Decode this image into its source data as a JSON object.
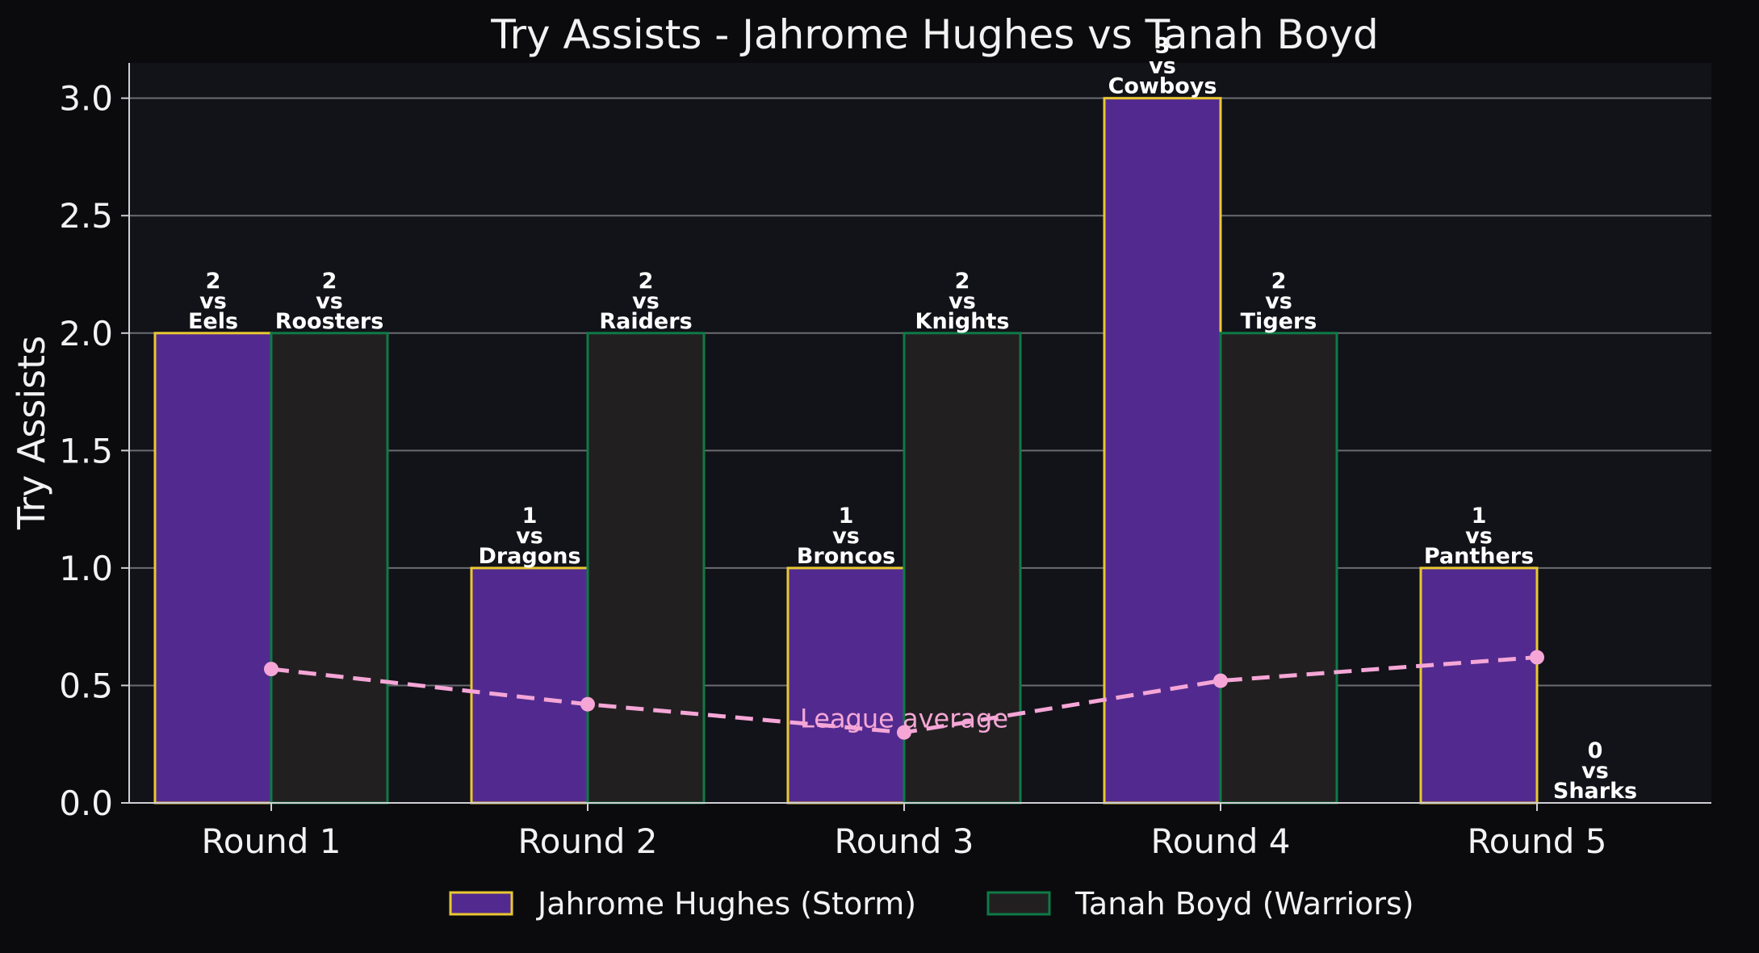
{
  "chart_data": {
    "type": "bar",
    "title": "Try Assists - Jahrome Hughes vs Tanah Boyd",
    "xlabel": "",
    "ylabel": "Try Assists",
    "ylim": [
      0,
      3.15
    ],
    "yticks": [
      "0.0",
      "0.5",
      "1.0",
      "1.5",
      "2.0",
      "2.5",
      "3.0"
    ],
    "grid": "horizontal",
    "legend_position": "bottom-center",
    "categories": [
      "Round 1",
      "Round 2",
      "Round 3",
      "Round 4",
      "Round 5"
    ],
    "series": [
      {
        "name": "Jahrome Hughes (Storm)",
        "values": [
          2,
          1,
          1,
          3,
          1
        ],
        "opponents": [
          "Eels",
          "Dragons",
          "Broncos",
          "Cowboys",
          "Panthers"
        ],
        "color": "#522a8f",
        "edge_color": "#e8c832"
      },
      {
        "name": "Tanah Boyd (Warriors)",
        "values": [
          2,
          2,
          2,
          2,
          0
        ],
        "opponents": [
          "Roosters",
          "Raiders",
          "Knights",
          "Tigers",
          "Sharks"
        ],
        "color": "#221f21",
        "edge_color": "#0e7a45"
      }
    ],
    "vs_word": "vs",
    "league_average": {
      "label": "League average",
      "values": [
        0.57,
        0.42,
        0.3,
        0.52,
        0.62
      ],
      "color": "#f5a6d6"
    },
    "colors": {
      "background": "#0b0b0e",
      "plot_background": "#121219",
      "grid": "#6b6b72",
      "text": "#f2f2f2"
    }
  }
}
